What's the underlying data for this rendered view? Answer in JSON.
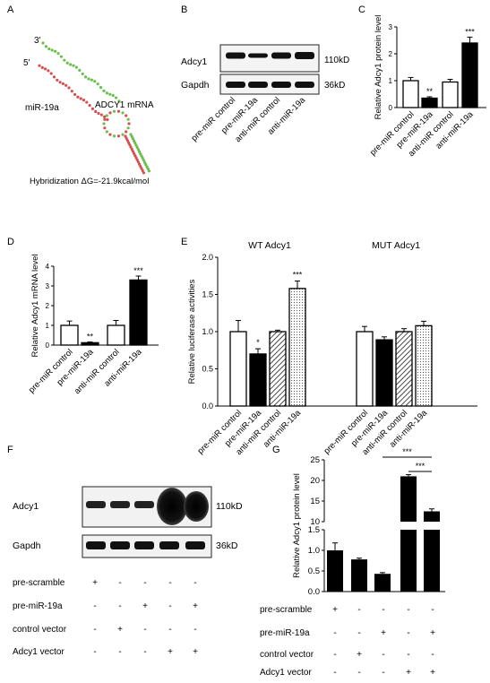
{
  "panels": {
    "A": "A",
    "B": "B",
    "C": "C",
    "D": "D",
    "E": "E",
    "F": "F",
    "G": "G"
  },
  "panelA": {
    "end3": "3'",
    "end5": "5'",
    "mirna": "miR-19a",
    "mrna": "ADCY1 mRNA",
    "hybridization": "Hybridization ΔG=-21.9kcal/mol"
  },
  "panelB": {
    "row1": "Adcy1",
    "row2": "Gapdh",
    "kd1": "110kD",
    "kd2": "36kD",
    "lanes": [
      "pre-miR control",
      "pre-miR-19a",
      "anti-miR control",
      "anti-miR-19a"
    ]
  },
  "chart_data": [
    {
      "id": "C",
      "type": "bar",
      "ylabel": "Relative Adcy1 protein level",
      "ylim": [
        0,
        3
      ],
      "yticks": [
        0,
        1,
        2,
        3
      ],
      "categories": [
        "pre-miR control",
        "pre-miR-19a",
        "anti-miR control",
        "anti-miR-19a"
      ],
      "values": [
        1.0,
        0.35,
        0.95,
        2.4
      ],
      "errors": [
        0.12,
        0.05,
        0.1,
        0.22
      ],
      "fills": [
        "white",
        "black",
        "white",
        "black"
      ],
      "significance": [
        "",
        "**",
        "",
        "***"
      ]
    },
    {
      "id": "D",
      "type": "bar",
      "ylabel": "Relative Adcy1 mRNA level",
      "ylim": [
        0,
        4
      ],
      "yticks": [
        0,
        1,
        2,
        3,
        4
      ],
      "categories": [
        "pre-miR control",
        "pre-miR-19a",
        "anti-miR control",
        "anti-miR-19a"
      ],
      "values": [
        1.0,
        0.12,
        1.0,
        3.3
      ],
      "errors": [
        0.22,
        0.04,
        0.25,
        0.2
      ],
      "fills": [
        "white",
        "black",
        "white",
        "black"
      ],
      "significance": [
        "",
        "**",
        "",
        "***"
      ]
    },
    {
      "id": "E",
      "type": "bar",
      "ylabel": "Relative luciferase activities",
      "ylim": [
        0,
        2
      ],
      "yticks": [
        0.0,
        0.5,
        1.0,
        1.5,
        2.0
      ],
      "groups": [
        "WT Adcy1",
        "MUT Adcy1"
      ],
      "categories": [
        "pre-miR control",
        "pre-miR-19a",
        "anti-miR control",
        "anti-miR-19a"
      ],
      "series": [
        {
          "group": "WT Adcy1",
          "values": [
            1.0,
            0.7,
            1.0,
            1.58
          ],
          "errors": [
            0.15,
            0.07,
            0.02,
            0.1
          ],
          "significance": [
            "",
            "*",
            "",
            "***"
          ]
        },
        {
          "group": "MUT Adcy1",
          "values": [
            1.0,
            0.89,
            1.0,
            1.08
          ],
          "errors": [
            0.07,
            0.04,
            0.04,
            0.06
          ],
          "significance": [
            "",
            "",
            "",
            ""
          ]
        }
      ],
      "fills": [
        "white",
        "black",
        "hatch",
        "dots"
      ]
    },
    {
      "id": "G",
      "type": "bar",
      "ylabel": "Relative Adcy1 protein level",
      "ylim_lower": [
        0,
        1.5
      ],
      "yticks_lower": [
        0.0,
        0.5,
        1.0,
        1.5
      ],
      "ylim_upper": [
        10,
        25
      ],
      "yticks_upper": [
        10,
        15,
        20,
        25
      ],
      "categories": [
        "1",
        "2",
        "3",
        "4",
        "5"
      ],
      "values": [
        1.0,
        0.78,
        0.43,
        21.0,
        12.5
      ],
      "errors": [
        0.18,
        0.03,
        0.03,
        0.4,
        0.6
      ],
      "significance_pairs": [
        {
          "from": 3,
          "to": 5,
          "label": "***"
        },
        {
          "from": 4,
          "to": 5,
          "label": "***"
        }
      ]
    }
  ],
  "panelF": {
    "row1": "Adcy1",
    "row2": "Gapdh",
    "kd1": "110kD",
    "kd2": "36kD"
  },
  "design_rows": [
    {
      "label": "pre-scramble",
      "marks": [
        "+",
        "-",
        "-",
        "-",
        "-"
      ]
    },
    {
      "label": "pre-miR-19a",
      "marks": [
        "-",
        "-",
        "+",
        "-",
        "+"
      ]
    },
    {
      "label": "control vector",
      "marks": [
        "-",
        "+",
        "-",
        "-",
        "-"
      ]
    },
    {
      "label": "Adcy1 vector",
      "marks": [
        "-",
        "-",
        "-",
        "+",
        "+"
      ]
    }
  ]
}
